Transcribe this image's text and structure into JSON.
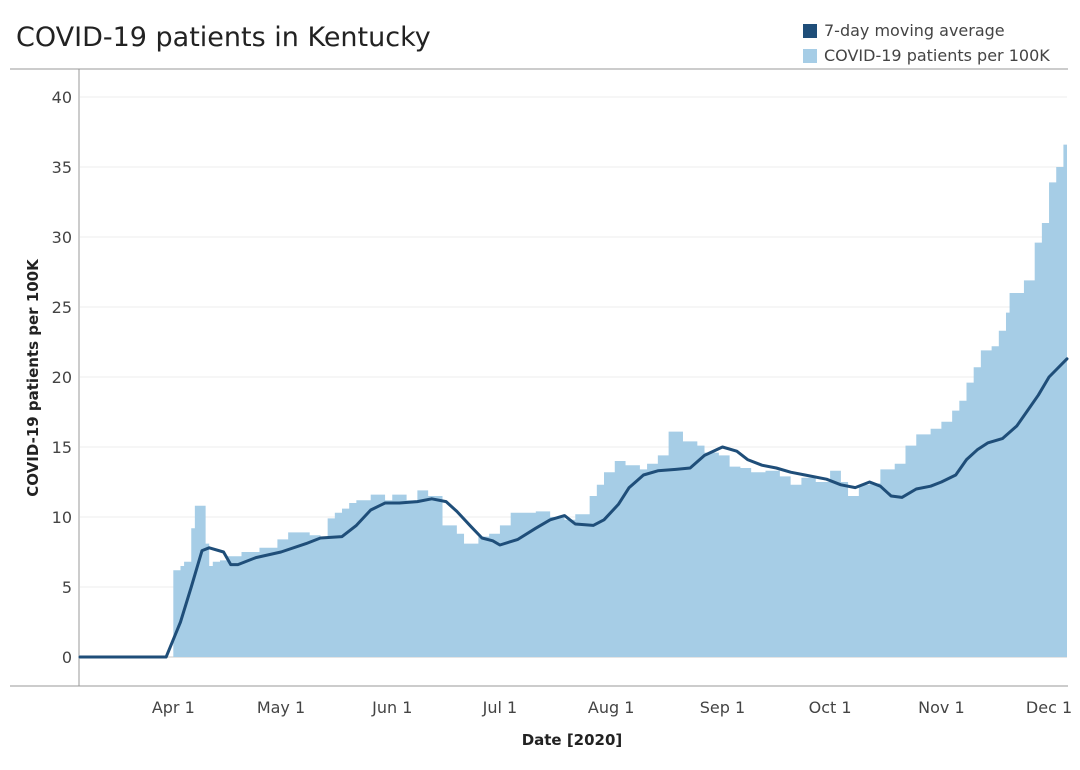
{
  "chart_data": {
    "type": "area",
    "title": "COVID-19 patients in Kentucky",
    "xlabel": "Date [2020]",
    "ylabel": "COVID-19 patients per 100K",
    "ylim": [
      0,
      42
    ],
    "yticks": [
      0,
      5,
      10,
      15,
      20,
      25,
      30,
      35,
      40
    ],
    "xticks": [
      "Apr 1",
      "May 1",
      "Jun 1",
      "Jul 1",
      "Aug 1",
      "Sep 1",
      "Oct 1",
      "Nov 1",
      "Dec 1"
    ],
    "x_start": "2020-03-06",
    "x_end": "2020-12-06",
    "grid": true,
    "legend_position": "top-right",
    "series": [
      {
        "name": "7-day moving average",
        "kind": "line",
        "color": "#1f4e79",
        "points": [
          [
            "2020-03-06",
            0
          ],
          [
            "2020-03-30",
            0
          ],
          [
            "2020-04-03",
            2.5
          ],
          [
            "2020-04-06",
            5
          ],
          [
            "2020-04-09",
            7.6
          ],
          [
            "2020-04-11",
            7.8
          ],
          [
            "2020-04-15",
            7.5
          ],
          [
            "2020-04-17",
            6.6
          ],
          [
            "2020-04-19",
            6.6
          ],
          [
            "2020-04-24",
            7.1
          ],
          [
            "2020-05-01",
            7.5
          ],
          [
            "2020-05-08",
            8.1
          ],
          [
            "2020-05-12",
            8.5
          ],
          [
            "2020-05-18",
            8.6
          ],
          [
            "2020-05-22",
            9.4
          ],
          [
            "2020-05-26",
            10.5
          ],
          [
            "2020-05-30",
            11
          ],
          [
            "2020-06-03",
            11
          ],
          [
            "2020-06-08",
            11.1
          ],
          [
            "2020-06-12",
            11.3
          ],
          [
            "2020-06-16",
            11.1
          ],
          [
            "2020-06-19",
            10.4
          ],
          [
            "2020-06-23",
            9.3
          ],
          [
            "2020-06-26",
            8.5
          ],
          [
            "2020-06-29",
            8.3
          ],
          [
            "2020-07-01",
            8
          ],
          [
            "2020-07-06",
            8.4
          ],
          [
            "2020-07-11",
            9.2
          ],
          [
            "2020-07-15",
            9.8
          ],
          [
            "2020-07-19",
            10.1
          ],
          [
            "2020-07-22",
            9.5
          ],
          [
            "2020-07-27",
            9.4
          ],
          [
            "2020-07-30",
            9.8
          ],
          [
            "2020-08-03",
            10.9
          ],
          [
            "2020-08-06",
            12.1
          ],
          [
            "2020-08-10",
            13
          ],
          [
            "2020-08-14",
            13.3
          ],
          [
            "2020-08-19",
            13.4
          ],
          [
            "2020-08-23",
            13.5
          ],
          [
            "2020-08-27",
            14.4
          ],
          [
            "2020-09-01",
            15
          ],
          [
            "2020-09-05",
            14.7
          ],
          [
            "2020-09-08",
            14.1
          ],
          [
            "2020-09-12",
            13.7
          ],
          [
            "2020-09-16",
            13.5
          ],
          [
            "2020-09-20",
            13.2
          ],
          [
            "2020-09-24",
            13
          ],
          [
            "2020-09-30",
            12.7
          ],
          [
            "2020-10-04",
            12.3
          ],
          [
            "2020-10-08",
            12.1
          ],
          [
            "2020-10-12",
            12.5
          ],
          [
            "2020-10-15",
            12.2
          ],
          [
            "2020-10-18",
            11.5
          ],
          [
            "2020-10-21",
            11.4
          ],
          [
            "2020-10-25",
            12
          ],
          [
            "2020-10-29",
            12.2
          ],
          [
            "2020-11-01",
            12.5
          ],
          [
            "2020-11-05",
            13
          ],
          [
            "2020-11-08",
            14.1
          ],
          [
            "2020-11-11",
            14.8
          ],
          [
            "2020-11-14",
            15.3
          ],
          [
            "2020-11-18",
            15.6
          ],
          [
            "2020-11-22",
            16.5
          ],
          [
            "2020-11-25",
            17.6
          ],
          [
            "2020-11-28",
            18.7
          ],
          [
            "2020-12-01",
            20
          ],
          [
            "2020-12-06",
            21.3
          ]
        ]
      },
      {
        "name": "COVID-19 patients per 100K",
        "kind": "area",
        "color": "#a6cde6",
        "points": [
          [
            "2020-03-06",
            0
          ],
          [
            "2020-03-31",
            0
          ],
          [
            "2020-04-01",
            6.2
          ],
          [
            "2020-04-03",
            6.5
          ],
          [
            "2020-04-04",
            6.8
          ],
          [
            "2020-04-06",
            9.2
          ],
          [
            "2020-04-07",
            10.8
          ],
          [
            "2020-04-10",
            8.1
          ],
          [
            "2020-04-11",
            6.5
          ],
          [
            "2020-04-12",
            6.8
          ],
          [
            "2020-04-14",
            6.9
          ],
          [
            "2020-04-16",
            7.2
          ],
          [
            "2020-04-20",
            7.5
          ],
          [
            "2020-04-25",
            7.8
          ],
          [
            "2020-04-30",
            8.4
          ],
          [
            "2020-05-03",
            8.9
          ],
          [
            "2020-05-09",
            8.7
          ],
          [
            "2020-05-12",
            8.6
          ],
          [
            "2020-05-14",
            9.9
          ],
          [
            "2020-05-16",
            10.3
          ],
          [
            "2020-05-18",
            10.6
          ],
          [
            "2020-05-20",
            11
          ],
          [
            "2020-05-22",
            11.2
          ],
          [
            "2020-05-26",
            11.6
          ],
          [
            "2020-05-30",
            11.2
          ],
          [
            "2020-06-01",
            11.6
          ],
          [
            "2020-06-05",
            11.2
          ],
          [
            "2020-06-08",
            11.9
          ],
          [
            "2020-06-11",
            11.5
          ],
          [
            "2020-06-15",
            9.4
          ],
          [
            "2020-06-19",
            8.8
          ],
          [
            "2020-06-21",
            8.1
          ],
          [
            "2020-06-25",
            8.6
          ],
          [
            "2020-06-28",
            8.8
          ],
          [
            "2020-07-01",
            9.4
          ],
          [
            "2020-07-04",
            10.3
          ],
          [
            "2020-07-11",
            10.4
          ],
          [
            "2020-07-15",
            10
          ],
          [
            "2020-07-19",
            9.8
          ],
          [
            "2020-07-22",
            10.2
          ],
          [
            "2020-07-26",
            11.5
          ],
          [
            "2020-07-28",
            12.3
          ],
          [
            "2020-07-30",
            13.2
          ],
          [
            "2020-08-02",
            14
          ],
          [
            "2020-08-05",
            13.7
          ],
          [
            "2020-08-09",
            13.4
          ],
          [
            "2020-08-11",
            13.8
          ],
          [
            "2020-08-14",
            14.4
          ],
          [
            "2020-08-17",
            16.1
          ],
          [
            "2020-08-21",
            15.4
          ],
          [
            "2020-08-25",
            15.1
          ],
          [
            "2020-08-27",
            14.6
          ],
          [
            "2020-08-31",
            14.4
          ],
          [
            "2020-09-03",
            13.6
          ],
          [
            "2020-09-06",
            13.5
          ],
          [
            "2020-09-09",
            13.2
          ],
          [
            "2020-09-13",
            13.3
          ],
          [
            "2020-09-17",
            12.9
          ],
          [
            "2020-09-20",
            12.3
          ],
          [
            "2020-09-23",
            12.8
          ],
          [
            "2020-09-27",
            12.5
          ],
          [
            "2020-10-01",
            13.3
          ],
          [
            "2020-10-04",
            12.5
          ],
          [
            "2020-10-06",
            11.5
          ],
          [
            "2020-10-09",
            12.3
          ],
          [
            "2020-10-12",
            12.4
          ],
          [
            "2020-10-15",
            13.4
          ],
          [
            "2020-10-19",
            13.8
          ],
          [
            "2020-10-22",
            15.1
          ],
          [
            "2020-10-25",
            15.9
          ],
          [
            "2020-10-29",
            16.3
          ],
          [
            "2020-11-01",
            16.8
          ],
          [
            "2020-11-04",
            17.6
          ],
          [
            "2020-11-06",
            18.3
          ],
          [
            "2020-11-08",
            19.6
          ],
          [
            "2020-11-10",
            20.7
          ],
          [
            "2020-11-12",
            21.9
          ],
          [
            "2020-11-15",
            22.2
          ],
          [
            "2020-11-17",
            23.3
          ],
          [
            "2020-11-19",
            24.6
          ],
          [
            "2020-11-20",
            26
          ],
          [
            "2020-11-24",
            26.9
          ],
          [
            "2020-11-27",
            29.6
          ],
          [
            "2020-11-29",
            31
          ],
          [
            "2020-12-01",
            33.9
          ],
          [
            "2020-12-03",
            35
          ],
          [
            "2020-12-05",
            36.6
          ],
          [
            "2020-12-06",
            37.2
          ]
        ]
      }
    ]
  }
}
